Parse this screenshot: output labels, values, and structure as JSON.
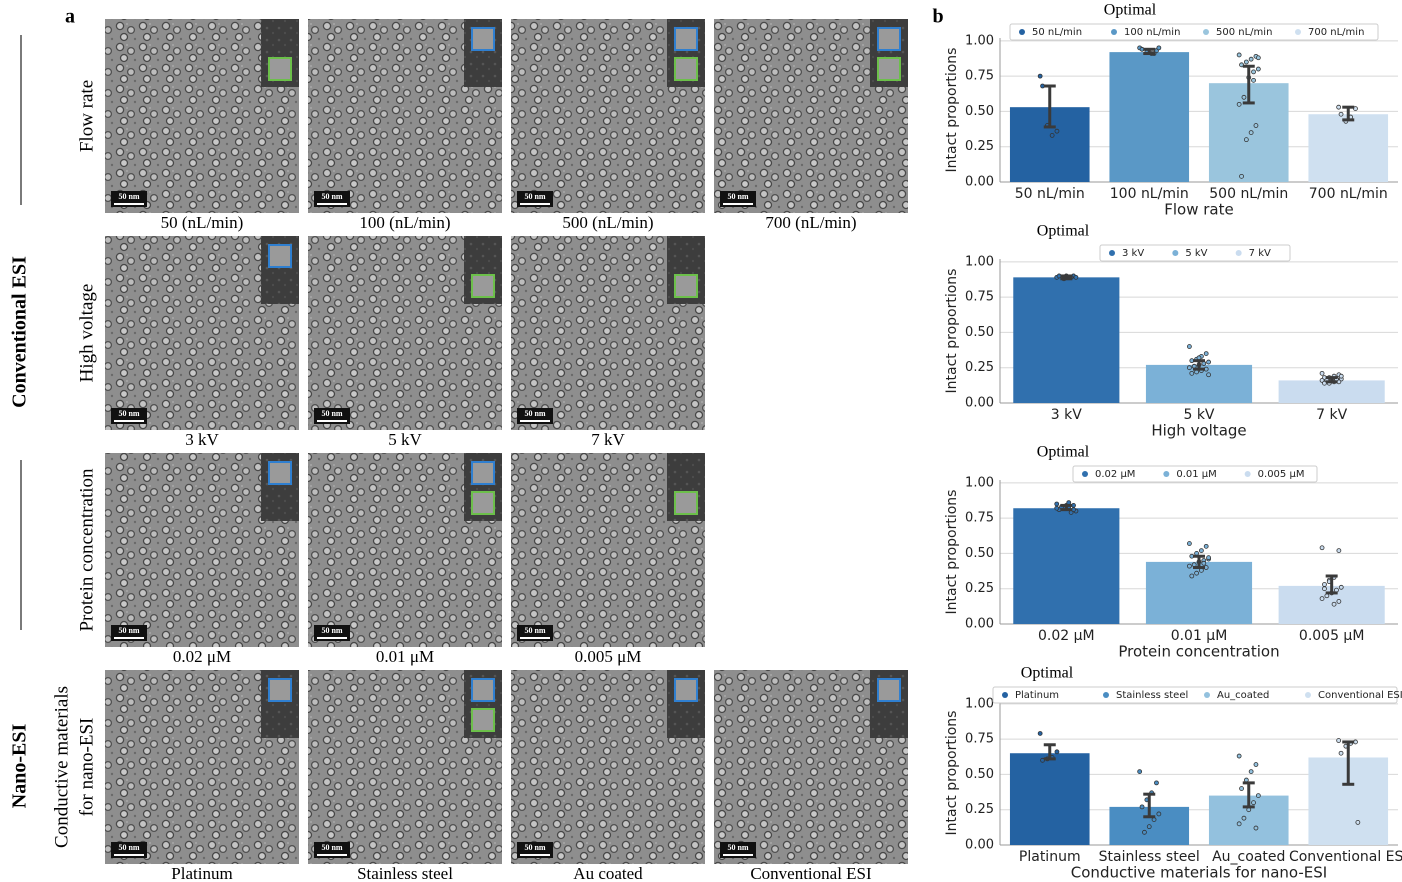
{
  "panel_a": {
    "label": "a",
    "groups": [
      "Conventional ESI",
      "Nano-ESI"
    ],
    "scale_bar": "50 nm",
    "rows": [
      {
        "label": [
          "Flow rate"
        ],
        "captions": [
          "50 (nL/min)",
          "100 (nL/min)",
          "500 (nL/min)",
          "700 (nL/min)"
        ]
      },
      {
        "label": [
          "High voltage"
        ],
        "captions": [
          "3 kV",
          "5 kV",
          "7 kV"
        ]
      },
      {
        "label": [
          "Protein concentration"
        ],
        "captions": [
          "0.02 μM",
          "0.01 μM",
          "0.005 μM"
        ]
      },
      {
        "label": [
          "Conductive materials",
          "for nano-ESI"
        ],
        "captions": [
          "Platinum",
          "Stainless steel",
          "Au coated",
          "Conventional ESI"
        ]
      }
    ]
  },
  "panel_b_label": "b",
  "chart_data": [
    {
      "type": "bar",
      "title": "Optimal",
      "xlabel": "Flow rate",
      "ylabel": "Intact proportions",
      "categories": [
        "50 nL/min",
        "100 nL/min",
        "500 nL/min",
        "700 nL/min"
      ],
      "colors": [
        "#2462a2",
        "#5a98c6",
        "#9ac5dd",
        "#cfe0f0"
      ],
      "values": [
        0.53,
        0.92,
        0.7,
        0.48
      ],
      "ci": [
        [
          0.39,
          0.68
        ],
        [
          0.91,
          0.94
        ],
        [
          0.56,
          0.82
        ],
        [
          0.44,
          0.53
        ]
      ],
      "points": [
        [
          0.75,
          0.36,
          0.33,
          0.4,
          0.68
        ],
        [
          0.95,
          0.93,
          0.91,
          0.92,
          0.94,
          0.95,
          0.91
        ],
        [
          0.9,
          0.89,
          0.87,
          0.85,
          0.83,
          0.8,
          0.78,
          0.74,
          0.6,
          0.55,
          0.4,
          0.35,
          0.3,
          0.04,
          0.88,
          0.72
        ],
        [
          0.53,
          0.52,
          0.46,
          0.43,
          0.48
        ]
      ],
      "ylim": [
        0,
        1.02
      ],
      "yticks": [
        {
          "value": 0,
          "label": "0.00"
        },
        {
          "value": 0.25,
          "label": "0.25"
        },
        {
          "value": 0.5,
          "label": "0.50"
        },
        {
          "value": 0.75,
          "label": "0.75"
        },
        {
          "value": 1,
          "label": "1.00"
        }
      ],
      "grid": true
    },
    {
      "type": "bar",
      "title": "Optimal",
      "xlabel": "High voltage",
      "ylabel": "Intact proportions",
      "categories": [
        "3 kV",
        "5 kV",
        "7 kV"
      ],
      "colors": [
        "#3070ae",
        "#7bb1d7",
        "#cadcef"
      ],
      "values": [
        0.89,
        0.27,
        0.16
      ],
      "ci": [
        [
          0.88,
          0.9
        ],
        [
          0.24,
          0.3
        ],
        [
          0.15,
          0.18
        ]
      ],
      "points": [
        [
          0.89,
          0.9,
          0.89,
          0.88,
          0.9,
          0.89,
          0.89,
          0.9
        ],
        [
          0.4,
          0.35,
          0.33,
          0.31,
          0.3,
          0.29,
          0.28,
          0.27,
          0.26,
          0.25,
          0.24,
          0.23,
          0.22,
          0.21,
          0.2,
          0.28,
          0.32,
          0.26
        ],
        [
          0.21,
          0.2,
          0.19,
          0.18,
          0.18,
          0.17,
          0.17,
          0.16,
          0.16,
          0.16,
          0.15,
          0.15,
          0.14,
          0.14,
          0.19,
          0.17,
          0.16
        ]
      ],
      "ylim": [
        0,
        1.02
      ],
      "yticks": [
        {
          "value": 0,
          "label": "0.00"
        },
        {
          "value": 0.25,
          "label": "0.25"
        },
        {
          "value": 0.5,
          "label": "0.50"
        },
        {
          "value": 0.75,
          "label": "0.75"
        },
        {
          "value": 1,
          "label": "1.00"
        }
      ],
      "grid": true
    },
    {
      "type": "bar",
      "title": "Optimal",
      "xlabel": "Protein concentration",
      "ylabel": "Intact proportions",
      "categories": [
        "0.02 μM",
        "0.01 μM",
        "0.005 μM"
      ],
      "colors": [
        "#3070ae",
        "#7bb1d7",
        "#cadcef"
      ],
      "values": [
        0.82,
        0.44,
        0.27
      ],
      "ci": [
        [
          0.81,
          0.84
        ],
        [
          0.4,
          0.48
        ],
        [
          0.22,
          0.34
        ]
      ],
      "points": [
        [
          0.85,
          0.84,
          0.83,
          0.82,
          0.81,
          0.8,
          0.79,
          0.84,
          0.83,
          0.82,
          0.81,
          0.86
        ],
        [
          0.57,
          0.55,
          0.52,
          0.5,
          0.48,
          0.46,
          0.45,
          0.44,
          0.42,
          0.41,
          0.4,
          0.38,
          0.36,
          0.34,
          0.47,
          0.43
        ],
        [
          0.54,
          0.52,
          0.33,
          0.31,
          0.28,
          0.26,
          0.24,
          0.22,
          0.2,
          0.18,
          0.16,
          0.14,
          0.3,
          0.25
        ]
      ],
      "ylim": [
        0,
        1.02
      ],
      "yticks": [
        {
          "value": 0,
          "label": "0.00"
        },
        {
          "value": 0.25,
          "label": "0.25"
        },
        {
          "value": 0.5,
          "label": "0.50"
        },
        {
          "value": 0.75,
          "label": "0.75"
        },
        {
          "value": 1,
          "label": "1.00"
        }
      ],
      "grid": true
    },
    {
      "type": "bar",
      "title": "Optimal",
      "xlabel": "Conductive materials for nano-ESI",
      "ylabel": "Intact proportions",
      "categories": [
        "Platinum",
        "Stainless steel",
        "Au_coated",
        "Conventional ESI"
      ],
      "colors": [
        "#2462a2",
        "#4a8dc2",
        "#93c1de",
        "#cfe0f0"
      ],
      "values": [
        0.65,
        0.27,
        0.35,
        0.62
      ],
      "ci": [
        [
          0.61,
          0.71
        ],
        [
          0.2,
          0.36
        ],
        [
          0.27,
          0.44
        ],
        [
          0.43,
          0.73
        ]
      ],
      "points": [
        [
          0.79,
          0.66,
          0.62,
          0.61,
          0.6
        ],
        [
          0.52,
          0.44,
          0.37,
          0.32,
          0.27,
          0.22,
          0.18,
          0.13,
          0.09
        ],
        [
          0.63,
          0.57,
          0.52,
          0.46,
          0.4,
          0.35,
          0.3,
          0.25,
          0.19,
          0.15,
          0.12
        ],
        [
          0.74,
          0.73,
          0.72,
          0.7,
          0.65,
          0.16
        ]
      ],
      "ylim": [
        0,
        1.02
      ],
      "yticks": [
        {
          "value": 0,
          "label": "0.00"
        },
        {
          "value": 0.25,
          "label": "0.25"
        },
        {
          "value": 0.5,
          "label": "0.50"
        },
        {
          "value": 0.75,
          "label": "0.75"
        },
        {
          "value": 1,
          "label": "1.00"
        }
      ],
      "grid": true
    }
  ]
}
